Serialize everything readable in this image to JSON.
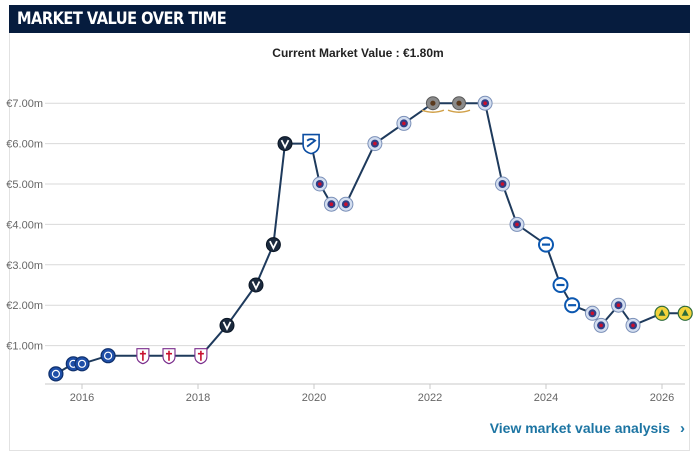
{
  "header": {
    "title": "MARKET VALUE OVER TIME"
  },
  "subtitle": "Current Market Value : €1.80m",
  "footer": {
    "link_label": "View market value analysis",
    "chevron": "chevron-right-icon"
  },
  "colors": {
    "header_bg": "#061c3e",
    "line": "#1e3a5c",
    "grid": "#d9d9d9",
    "link": "#1d75a3"
  },
  "chart_data": {
    "type": "line",
    "title": "",
    "xlabel": "",
    "ylabel": "",
    "xlim": [
      2015.4,
      2026.4
    ],
    "ylim": [
      0,
      7.5
    ],
    "x_ticks": [
      2016,
      2018,
      2020,
      2022,
      2024,
      2026
    ],
    "x_tick_labels": [
      "2016",
      "2018",
      "2020",
      "2022",
      "2024",
      "2026"
    ],
    "y_ticks": [
      1,
      2,
      3,
      4,
      5,
      6,
      7
    ],
    "y_tick_labels": [
      "€1.00m",
      "€2.00m",
      "€3.00m",
      "€4.00m",
      "€5.00m",
      "€6.00m",
      "€7.00m"
    ],
    "grid": "horizontal",
    "legend": "none",
    "series": [
      {
        "unit": "€m",
        "points": [
          {
            "x": 2015.55,
            "y": 0.3,
            "club": "gent"
          },
          {
            "x": 2015.85,
            "y": 0.55,
            "club": "gent"
          },
          {
            "x": 2016.0,
            "y": 0.55,
            "club": "gent"
          },
          {
            "x": 2016.45,
            "y": 0.75,
            "club": "gent"
          },
          {
            "x": 2017.05,
            "y": 0.75,
            "club": "fiorentina"
          },
          {
            "x": 2017.5,
            "y": 0.75,
            "club": "fiorentina"
          },
          {
            "x": 2018.05,
            "y": 0.75,
            "club": "fiorentina"
          },
          {
            "x": 2018.5,
            "y": 1.5,
            "club": "vitesse"
          },
          {
            "x": 2019.0,
            "y": 2.5,
            "club": "vitesse"
          },
          {
            "x": 2019.3,
            "y": 3.5,
            "club": "vitesse"
          },
          {
            "x": 2019.5,
            "y": 6.0,
            "club": "vitesse"
          },
          {
            "x": 2019.95,
            "y": 6.0,
            "club": "genk"
          },
          {
            "x": 2020.1,
            "y": 5.0,
            "club": "rangers"
          },
          {
            "x": 2020.3,
            "y": 4.5,
            "club": "rangers"
          },
          {
            "x": 2020.55,
            "y": 4.5,
            "club": "rangers"
          },
          {
            "x": 2021.05,
            "y": 6.0,
            "club": "rangers"
          },
          {
            "x": 2021.55,
            "y": 6.5,
            "club": "rangers"
          },
          {
            "x": 2022.05,
            "y": 7.0,
            "club": "cagliari"
          },
          {
            "x": 2022.5,
            "y": 7.0,
            "club": "cagliari"
          },
          {
            "x": 2022.95,
            "y": 7.0,
            "club": "rangers"
          },
          {
            "x": 2023.25,
            "y": 5.0,
            "club": "rangers"
          },
          {
            "x": 2023.5,
            "y": 4.0,
            "club": "rangers"
          },
          {
            "x": 2024.0,
            "y": 3.5,
            "club": "brighton"
          },
          {
            "x": 2024.25,
            "y": 2.5,
            "club": "brighton"
          },
          {
            "x": 2024.45,
            "y": 2.0,
            "club": "brighton"
          },
          {
            "x": 2024.8,
            "y": 1.8,
            "club": "rangers"
          },
          {
            "x": 2024.95,
            "y": 1.5,
            "club": "rangers"
          },
          {
            "x": 2025.25,
            "y": 2.0,
            "club": "rangers"
          },
          {
            "x": 2025.5,
            "y": 1.5,
            "club": "rangers"
          },
          {
            "x": 2026.0,
            "y": 1.8,
            "club": "yellow-crest"
          },
          {
            "x": 2026.4,
            "y": 1.8,
            "club": "yellow-crest"
          }
        ]
      }
    ]
  }
}
